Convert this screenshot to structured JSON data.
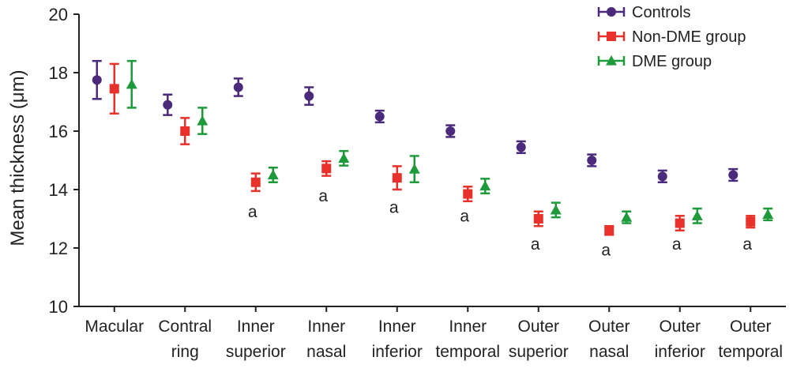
{
  "chart_data": {
    "type": "scatter",
    "error_bars": true,
    "ylabel": "Mean thickness (μm)",
    "xlabel": "",
    "ylim": [
      10,
      20
    ],
    "yticks": [
      10,
      12,
      14,
      16,
      18,
      20
    ],
    "grid": false,
    "legend_position": "top-right",
    "categories": [
      [
        "Macular"
      ],
      [
        "Contral",
        "ring"
      ],
      [
        "Inner",
        "superior"
      ],
      [
        "Inner",
        "nasal"
      ],
      [
        "Inner",
        "inferior"
      ],
      [
        "Inner",
        "temporal"
      ],
      [
        "Outer",
        "superior"
      ],
      [
        "Outer",
        "nasal"
      ],
      [
        "Outer",
        "inferior"
      ],
      [
        "Outer",
        "temporal"
      ]
    ],
    "series": [
      {
        "name": "Controls",
        "color": "#4b2a7b",
        "marker": "circle",
        "values": [
          17.75,
          16.9,
          17.5,
          17.2,
          16.5,
          16.0,
          15.45,
          15.0,
          14.45,
          14.5
        ],
        "errors": [
          0.65,
          0.35,
          0.3,
          0.3,
          0.2,
          0.2,
          0.2,
          0.2,
          0.2,
          0.2
        ]
      },
      {
        "name": "Non-DME group",
        "color": "#e8312a",
        "marker": "square",
        "values": [
          17.45,
          16.0,
          14.25,
          14.72,
          14.4,
          13.85,
          13.0,
          12.6,
          12.85,
          12.9
        ],
        "errors": [
          0.85,
          0.45,
          0.3,
          0.25,
          0.4,
          0.25,
          0.25,
          0.15,
          0.25,
          0.2
        ]
      },
      {
        "name": "DME group",
        "color": "#1f9a3a",
        "marker": "triangle",
        "values": [
          17.6,
          16.35,
          14.5,
          15.07,
          14.7,
          14.12,
          13.3,
          13.05,
          13.1,
          13.15
        ],
        "errors": [
          0.8,
          0.45,
          0.25,
          0.25,
          0.45,
          0.25,
          0.25,
          0.2,
          0.25,
          0.2
        ]
      }
    ],
    "annotations": [
      {
        "category_index": 2,
        "text": "a",
        "y": 13.05
      },
      {
        "category_index": 3,
        "text": "a",
        "y": 13.6
      },
      {
        "category_index": 4,
        "text": "a",
        "y": 13.2
      },
      {
        "category_index": 5,
        "text": "a",
        "y": 12.9
      },
      {
        "category_index": 6,
        "text": "a",
        "y": 11.95
      },
      {
        "category_index": 7,
        "text": "a",
        "y": 11.75
      },
      {
        "category_index": 8,
        "text": "a",
        "y": 11.95
      },
      {
        "category_index": 9,
        "text": "a",
        "y": 11.95
      }
    ]
  }
}
